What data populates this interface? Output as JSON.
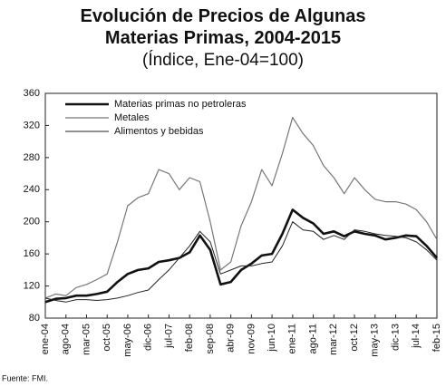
{
  "chart_data": {
    "type": "line",
    "title": "Evolución de Precios de Algunas Materias Primas, 2004-2015",
    "subtitle": "(Índice, Ene-04=100)",
    "source": "Fuente: FMI.",
    "categories": [
      "ene-04",
      null,
      "ago-04",
      null,
      "mar-05",
      null,
      "oct-05",
      null,
      "may-06",
      null,
      "dic-06",
      null,
      "jul-07",
      null,
      "feb-08",
      null,
      "sep-08",
      null,
      "abr-09",
      null,
      "nov-09",
      null,
      "jun-10",
      null,
      "ene-11",
      null,
      "ago-11",
      null,
      "mar-12",
      null,
      "oct-12",
      null,
      "may-13",
      null,
      "dic-13",
      null,
      "jul-14",
      null,
      "feb-15"
    ],
    "series": [
      {
        "name": "Materias primas no petroleras",
        "color": "#111111",
        "width": 2.6,
        "values": [
          100,
          104,
          105,
          108,
          108,
          110,
          113,
          125,
          135,
          140,
          142,
          150,
          152,
          155,
          162,
          183,
          165,
          122,
          125,
          140,
          148,
          158,
          160,
          185,
          215,
          205,
          198,
          185,
          188,
          182,
          188,
          185,
          183,
          178,
          180,
          183,
          182,
          170,
          155
        ]
      },
      {
        "name": "Metales",
        "color": "#777777",
        "width": 1.2,
        "values": [
          105,
          110,
          108,
          118,
          122,
          128,
          135,
          175,
          220,
          230,
          235,
          265,
          260,
          240,
          255,
          250,
          200,
          140,
          150,
          195,
          225,
          265,
          245,
          285,
          330,
          310,
          295,
          270,
          255,
          235,
          255,
          240,
          228,
          225,
          225,
          222,
          215,
          200,
          178
        ]
      },
      {
        "name": "Alimentos y bebidas",
        "color": "#222222",
        "width": 1,
        "values": [
          105,
          102,
          100,
          103,
          103,
          102,
          103,
          105,
          108,
          112,
          115,
          128,
          140,
          155,
          170,
          188,
          175,
          135,
          140,
          145,
          145,
          148,
          150,
          170,
          200,
          190,
          188,
          178,
          183,
          178,
          190,
          188,
          185,
          183,
          182,
          180,
          175,
          165,
          152
        ]
      }
    ],
    "ylim": [
      80,
      360
    ],
    "yticks": [
      80,
      120,
      160,
      200,
      240,
      280,
      320,
      360
    ],
    "legend": "top-left"
  }
}
